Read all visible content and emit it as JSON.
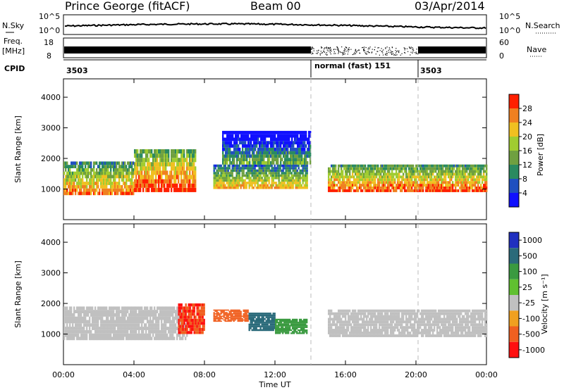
{
  "header": {
    "radar": "Prince George (fitACF)",
    "beam": "Beam 00",
    "date": "03/Apr/2014"
  },
  "strip": {
    "nsky_label": "N.Sky",
    "nsearch_label": "N.Search",
    "freq_label_line1": "Freq.",
    "freq_label_line2": "[MHz]",
    "nave_label": "Nave",
    "cpid_label": "CPID",
    "left_ticks_top": [
      "10^5",
      "10^0"
    ],
    "right_ticks_top": [
      "10^5",
      "10^0"
    ],
    "freq_ticks": [
      "18",
      "8"
    ],
    "nave_ticks": [
      "60",
      "0"
    ],
    "cpid_segments": [
      {
        "start_hour": 0,
        "label": "3503"
      },
      {
        "start_hour": 14,
        "label": "normal (fast) 151"
      },
      {
        "start_hour": 20,
        "label": "3503"
      }
    ]
  },
  "chart_data": [
    {
      "type": "heatmap",
      "panel": "power",
      "ylabel": "Slant Range [km]",
      "ylim": [
        0,
        4600
      ],
      "yticks": [
        "1000",
        "2000",
        "3000",
        "4000"
      ],
      "xlim": [
        0,
        24
      ],
      "colorbar_label": "Power [dB]",
      "colorbar_ticks": [
        "4",
        "8",
        "12",
        "16",
        "20",
        "24",
        "28"
      ],
      "colorbar_colors": [
        "#1010ff",
        "#2050c0",
        "#2a8a60",
        "#6fa040",
        "#a0cc30",
        "#f0c020",
        "#f08020",
        "#ff2000"
      ],
      "bands": [
        {
          "t0": 0.0,
          "t1": 4.0,
          "r0": 800,
          "r1": 1900,
          "level": 0.55
        },
        {
          "t0": 4.0,
          "t1": 7.5,
          "r0": 900,
          "r1": 2300,
          "level": 0.65
        },
        {
          "t0": 8.5,
          "t1": 13.8,
          "r0": 1000,
          "r1": 1800,
          "level": 0.45
        },
        {
          "t0": 15.0,
          "t1": 24.0,
          "r0": 900,
          "r1": 1800,
          "level": 0.6
        },
        {
          "t0": 9.0,
          "t1": 14.0,
          "r0": 1800,
          "r1": 2900,
          "level": 0.15
        }
      ]
    },
    {
      "type": "heatmap",
      "panel": "velocity",
      "xlabel": "Time UT",
      "ylabel": "Slant Range [km]",
      "ylim": [
        0,
        4600
      ],
      "yticks": [
        "1000",
        "2000",
        "3000",
        "4000"
      ],
      "xlim": [
        0,
        24
      ],
      "xticks": [
        "00:00",
        "04:00",
        "08:00",
        "12:00",
        "16:00",
        "20:00",
        "00:00"
      ],
      "colorbar_label": "Velocity [m s⁻¹]",
      "colorbar_ticks": [
        "1000",
        "500",
        "100",
        "25",
        "-25",
        "-100",
        "-500",
        "-1000"
      ],
      "colorbar_colors": [
        "#2030c0",
        "#2a6a7a",
        "#3a9a40",
        "#60c030",
        "#c0c0c0",
        "#f0a020",
        "#f06020",
        "#ff1010"
      ],
      "bands": [
        {
          "t0": 0.0,
          "t1": 7.0,
          "r0": 800,
          "r1": 1900,
          "vel": 0
        },
        {
          "t0": 6.5,
          "t1": 8.0,
          "r0": 1000,
          "r1": 2000,
          "vel": -300
        },
        {
          "t0": 8.5,
          "t1": 10.5,
          "r0": 1400,
          "r1": 1800,
          "vel": -80
        },
        {
          "t0": 10.5,
          "t1": 12.0,
          "r0": 1100,
          "r1": 1700,
          "vel": 600
        },
        {
          "t0": 12.0,
          "t1": 13.8,
          "r0": 1000,
          "r1": 1500,
          "vel": 120
        },
        {
          "t0": 15.0,
          "t1": 24.0,
          "r0": 900,
          "r1": 1800,
          "vel": 0
        }
      ]
    }
  ]
}
